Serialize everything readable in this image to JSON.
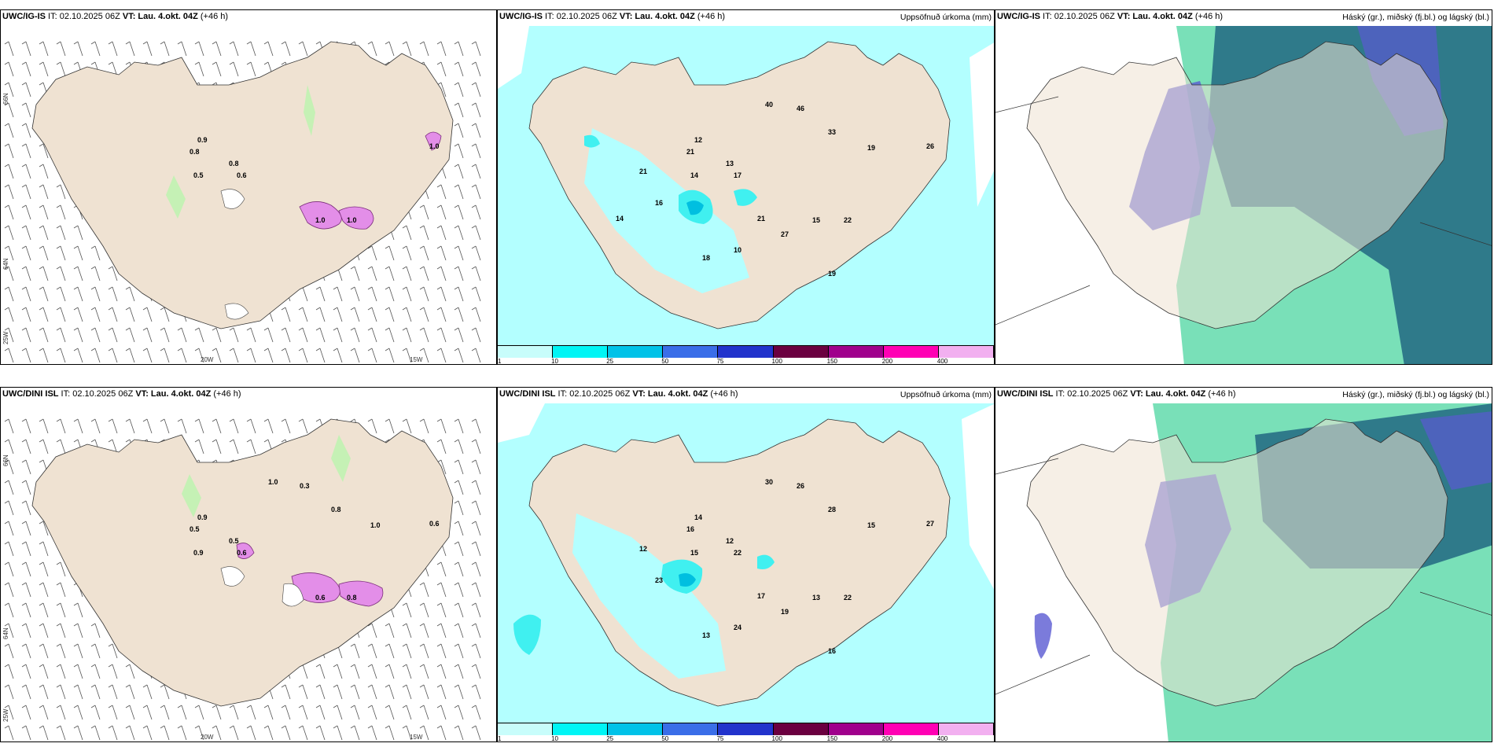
{
  "panels": [
    {
      "id": "p1",
      "title_model": "UWC/IG-IS",
      "title_it": " IT: 02.10.2025 06Z ",
      "title_vt": "VT: Lau. 4.okt. 04Z",
      "title_lead": " (+46 h)",
      "right_title": "",
      "values": [
        "0.9",
        "0.8",
        "0.8",
        "0.6",
        "0.5",
        "1.0",
        "1.0",
        "1.0"
      ]
    },
    {
      "id": "p2",
      "title_model": "UWC/IG-IS",
      "title_it": " IT: 02.10.2025 06Z ",
      "title_vt": "VT: Lau. 4.okt. 04Z",
      "title_lead": " (+46 h)",
      "right_title": "Uppsöfnuð úrkoma (mm)",
      "values": [
        "12",
        "21",
        "13",
        "17",
        "14",
        "15",
        "22",
        "26",
        "40",
        "46",
        "33",
        "19",
        "21",
        "27",
        "10",
        "18",
        "19",
        "16",
        "21",
        "14"
      ]
    },
    {
      "id": "p3",
      "title_model": "UWC/IG-IS",
      "title_it": " IT: 02.10.2025 06Z ",
      "title_vt": "VT: Lau. 4.okt. 04Z",
      "title_lead": " (+46 h)",
      "right_title": "Háský (gr.), miðský (fj.bl.) og lágský (bl.)",
      "values": []
    },
    {
      "id": "p4",
      "title_model": "UWC/DINI ISL",
      "title_it": " IT: 02.10.2025 06Z ",
      "title_vt": "VT: Lau. 4.okt. 04Z",
      "title_lead": " (+46 h)",
      "right_title": "",
      "values": [
        "0.9",
        "0.5",
        "0.5",
        "0.6",
        "0.9",
        "0.6",
        "0.8",
        "0.6",
        "1.0",
        "0.3",
        "0.8",
        "1.0"
      ]
    },
    {
      "id": "p5",
      "title_model": "UWC/DINI ISL",
      "title_it": " IT: 02.10.2025 06Z ",
      "title_vt": "VT: Lau. 4.okt. 04Z",
      "title_lead": " (+46 h)",
      "right_title": "Uppsöfnuð úrkoma (mm)",
      "values": [
        "14",
        "16",
        "12",
        "22",
        "15",
        "13",
        "22",
        "27",
        "30",
        "26",
        "28",
        "15",
        "17",
        "19",
        "24",
        "13",
        "16",
        "23",
        "12"
      ]
    },
    {
      "id": "p6",
      "title_model": "UWC/DINI ISL",
      "title_it": " IT: 02.10.2025 06Z ",
      "title_vt": "VT: Lau. 4.okt. 04Z",
      "title_lead": " (+46 h)",
      "right_title": "Háský (gr.), miðský (fj.bl.) og lágský (bl.)",
      "values": []
    }
  ],
  "axes": {
    "lon_20w": "20W",
    "lon_15w": "15W",
    "lat_66n": "66N",
    "lat_64n": "64N",
    "lon_25w": "25W"
  },
  "colorbar": {
    "ticks": [
      "1",
      "10",
      "25",
      "50",
      "75",
      "100",
      "150",
      "200",
      "400"
    ],
    "colors": [
      "#c8fdfb",
      "#00f5f5",
      "#00c2e8",
      "#3a6ee8",
      "#2233cc",
      "#6b0040",
      "#a0008c",
      "#ff00b4",
      "#f2b0f0"
    ]
  },
  "colors": {
    "land": "#efe2d2",
    "precip_light": "#b3ffff",
    "precip_mid": "#40f0f0",
    "precip_heavy": "#00bfe0",
    "hi_cloud": "#2f7a8a",
    "mid_cloud": "#5a5ad2",
    "low_cloud": "#1fcc88",
    "icing_pink": "#e38ee8"
  }
}
